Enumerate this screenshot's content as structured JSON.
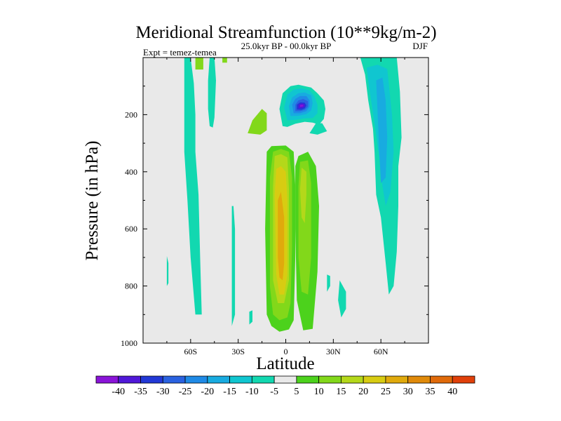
{
  "chart_data": {
    "type": "filled-contour",
    "title": "Meridional Streamfunction (10**9kg/m-2)",
    "subtitle": "25.0kyr BP - 00.0kyr BP",
    "left_label": "Expt = temez-temea",
    "right_label": "DJF",
    "xlabel": "Latitude",
    "ylabel": "Pressure (in hPa)",
    "xlim": [
      -90,
      90
    ],
    "ylim": [
      1000,
      0
    ],
    "xticks": [
      {
        "value": -60,
        "label": "60S"
      },
      {
        "value": -30,
        "label": "30S"
      },
      {
        "value": 0,
        "label": "0"
      },
      {
        "value": 30,
        "label": "30N"
      },
      {
        "value": 60,
        "label": "60N"
      }
    ],
    "yticks": [
      {
        "value": 200,
        "label": "200"
      },
      {
        "value": 400,
        "label": "400"
      },
      {
        "value": 600,
        "label": "600"
      },
      {
        "value": 800,
        "label": "800"
      },
      {
        "value": 1000,
        "label": "1000"
      }
    ],
    "levels": [
      -40,
      -35,
      -30,
      -25,
      -20,
      -15,
      -10,
      -5,
      5,
      10,
      15,
      20,
      25,
      30,
      35,
      40
    ],
    "colors": [
      "#8a14d8",
      "#5018d8",
      "#2238d6",
      "#2a62e0",
      "#1f8ae6",
      "#18abe0",
      "#10c6d0",
      "#12d8b0",
      "#e9e9e9",
      "#4cd21c",
      "#82d81a",
      "#b4d81a",
      "#d8cc12",
      "#e0aa0c",
      "#e08a0a",
      "#e06a0a",
      "#e0400a"
    ],
    "background_color": "#e9e9e9",
    "regions": [
      {
        "class": 10,
        "points": [
          [
            -57,
            0
          ],
          [
            -52,
            0
          ],
          [
            -52,
            42
          ],
          [
            -57,
            42
          ]
        ]
      },
      {
        "class": 10,
        "points": [
          [
            -40,
            0
          ],
          [
            -37,
            0
          ],
          [
            -37,
            18
          ],
          [
            -40,
            18
          ]
        ]
      },
      {
        "class": 10,
        "points": [
          [
            -15,
            180
          ],
          [
            -12,
            195
          ],
          [
            -12,
            255
          ],
          [
            -16,
            270
          ],
          [
            -24,
            265
          ],
          [
            -21,
            220
          ]
        ]
      },
      {
        "class": 7,
        "points": [
          [
            -64,
            0
          ],
          [
            -60,
            0
          ],
          [
            -58,
            90
          ],
          [
            -57,
            200
          ],
          [
            -57,
            330
          ],
          [
            -55,
            480
          ],
          [
            -54,
            700
          ],
          [
            -53,
            900
          ],
          [
            -57,
            900
          ],
          [
            -60,
            700
          ],
          [
            -62,
            500
          ],
          [
            -64,
            330
          ]
        ]
      },
      {
        "class": 7,
        "points": [
          [
            -48,
            0
          ],
          [
            -45,
            0
          ],
          [
            -44,
            80
          ],
          [
            -45,
            210
          ],
          [
            -46,
            245
          ],
          [
            -48,
            240
          ],
          [
            -49,
            180
          ],
          [
            -49,
            80
          ]
        ]
      },
      {
        "class": 7,
        "points": [
          [
            -75,
            695
          ],
          [
            -74,
            720
          ],
          [
            -74,
            790
          ],
          [
            -75,
            800
          ]
        ]
      },
      {
        "class": 7,
        "points": [
          [
            -34,
            520
          ],
          [
            -33,
            520
          ],
          [
            -32,
            600
          ],
          [
            -32,
            900
          ],
          [
            -34,
            940
          ]
        ]
      },
      {
        "class": 7,
        "points": [
          [
            -23,
            890
          ],
          [
            -21,
            885
          ],
          [
            -21,
            925
          ],
          [
            -23,
            935
          ]
        ]
      },
      {
        "class": 7,
        "points": [
          [
            15,
            265
          ],
          [
            19,
            230
          ],
          [
            23,
            230
          ],
          [
            26,
            258
          ],
          [
            20,
            270
          ]
        ]
      },
      {
        "class": 7,
        "points": [
          [
            26,
            760
          ],
          [
            28,
            765
          ],
          [
            28,
            800
          ],
          [
            26,
            820
          ]
        ]
      },
      {
        "class": 7,
        "points": [
          [
            34,
            780
          ],
          [
            38,
            820
          ],
          [
            38,
            880
          ],
          [
            35,
            910
          ],
          [
            33,
            850
          ]
        ]
      },
      {
        "class": 7,
        "points": [
          [
            47,
            0
          ],
          [
            55,
            0
          ],
          [
            63,
            0
          ],
          [
            70,
            0
          ],
          [
            72,
            120
          ],
          [
            73,
            280
          ],
          [
            71,
            380
          ],
          [
            71,
            520
          ],
          [
            70,
            680
          ],
          [
            68,
            800
          ],
          [
            65,
            830
          ],
          [
            63,
            720
          ],
          [
            60,
            560
          ],
          [
            57,
            480
          ],
          [
            56,
            330
          ],
          [
            55,
            250
          ],
          [
            52,
            150
          ],
          [
            50,
            60
          ]
        ]
      },
      {
        "class": 6,
        "points": [
          [
            51,
            35
          ],
          [
            58,
            25
          ],
          [
            64,
            40
          ],
          [
            67,
            200
          ],
          [
            68,
            330
          ],
          [
            66,
            470
          ],
          [
            63,
            520
          ],
          [
            61,
            450
          ],
          [
            59,
            350
          ],
          [
            56,
            230
          ],
          [
            53,
            120
          ]
        ]
      },
      {
        "class": 5,
        "points": [
          [
            57,
            80
          ],
          [
            61,
            70
          ],
          [
            63,
            150
          ],
          [
            64,
            280
          ],
          [
            63,
            420
          ],
          [
            60,
            440
          ],
          [
            59,
            330
          ],
          [
            58,
            200
          ]
        ]
      },
      {
        "class": 7,
        "points": [
          [
            -2,
            240
          ],
          [
            -4,
            180
          ],
          [
            -2,
            125
          ],
          [
            3,
            100
          ],
          [
            8,
            95
          ],
          [
            12,
            100
          ],
          [
            16,
            105
          ],
          [
            20,
            125
          ],
          [
            24,
            150
          ],
          [
            25,
            180
          ],
          [
            24,
            215
          ],
          [
            21,
            235
          ],
          [
            17,
            228
          ],
          [
            12,
            225
          ],
          [
            6,
            232
          ],
          [
            1,
            243
          ]
        ]
      },
      {
        "class": 6,
        "points": [
          [
            1,
            220
          ],
          [
            -1,
            175
          ],
          [
            1,
            130
          ],
          [
            5,
            112
          ],
          [
            10,
            108
          ],
          [
            15,
            115
          ],
          [
            18,
            135
          ],
          [
            20,
            165
          ],
          [
            20,
            195
          ],
          [
            17,
            212
          ],
          [
            12,
            213
          ],
          [
            6,
            218
          ]
        ]
      },
      {
        "class": 5,
        "points": [
          [
            3,
            205
          ],
          [
            2,
            170
          ],
          [
            4,
            140
          ],
          [
            8,
            125
          ],
          [
            12,
            122
          ],
          [
            16,
            132
          ],
          [
            17,
            160
          ],
          [
            16,
            185
          ],
          [
            13,
            198
          ],
          [
            8,
            204
          ]
        ]
      },
      {
        "class": 4,
        "points": [
          [
            5,
            195
          ],
          [
            4,
            165
          ],
          [
            6,
            145
          ],
          [
            9,
            135
          ],
          [
            13,
            135
          ],
          [
            15,
            150
          ],
          [
            15,
            172
          ],
          [
            13,
            188
          ],
          [
            9,
            195
          ]
        ]
      },
      {
        "class": 3,
        "points": [
          [
            6,
            188
          ],
          [
            6,
            165
          ],
          [
            8,
            150
          ],
          [
            11,
            145
          ],
          [
            14,
            153
          ],
          [
            14,
            172
          ],
          [
            12,
            183
          ],
          [
            9,
            188
          ]
        ]
      },
      {
        "class": 2,
        "points": [
          [
            7,
            182
          ],
          [
            7,
            165
          ],
          [
            9,
            157
          ],
          [
            12,
            158
          ],
          [
            13,
            168
          ],
          [
            12,
            178
          ],
          [
            10,
            183
          ]
        ]
      },
      {
        "class": 1,
        "points": [
          [
            8,
            178
          ],
          [
            8,
            165
          ],
          [
            10,
            160
          ],
          [
            12,
            163
          ],
          [
            12,
            173
          ],
          [
            10,
            178
          ]
        ]
      },
      {
        "class": 0,
        "points": [
          [
            9,
            173
          ],
          [
            9,
            166
          ],
          [
            11,
            165
          ],
          [
            11,
            171
          ]
        ]
      },
      {
        "class": 9,
        "points": [
          [
            -9,
            310
          ],
          [
            -12,
            330
          ],
          [
            -13,
            600
          ],
          [
            -12,
            900
          ],
          [
            -9,
            940
          ],
          [
            -4,
            960
          ],
          [
            2,
            952
          ],
          [
            5,
            920
          ],
          [
            6,
            700
          ],
          [
            6,
            450
          ],
          [
            5,
            330
          ],
          [
            0,
            308
          ]
        ]
      },
      {
        "class": 10,
        "points": [
          [
            -8,
            330
          ],
          [
            -10,
            420
          ],
          [
            -10,
            800
          ],
          [
            -8,
            900
          ],
          [
            -4,
            920
          ],
          [
            1,
            910
          ],
          [
            3,
            860
          ],
          [
            4,
            660
          ],
          [
            4,
            420
          ],
          [
            2,
            330
          ],
          [
            -3,
            320
          ]
        ]
      },
      {
        "class": 11,
        "points": [
          [
            -7,
            345
          ],
          [
            -8,
            450
          ],
          [
            -8,
            780
          ],
          [
            -5,
            860
          ],
          [
            -1,
            860
          ],
          [
            2,
            780
          ],
          [
            2,
            460
          ],
          [
            1,
            350
          ],
          [
            -3,
            338
          ]
        ]
      },
      {
        "class": 12,
        "points": [
          [
            -6,
            390
          ],
          [
            -7,
            480
          ],
          [
            -6,
            760
          ],
          [
            -4,
            830
          ],
          [
            -1,
            830
          ],
          [
            1,
            760
          ],
          [
            1,
            500
          ],
          [
            0,
            400
          ],
          [
            -3,
            380
          ]
        ]
      },
      {
        "class": 13,
        "points": [
          [
            -5,
            500
          ],
          [
            -5,
            700
          ],
          [
            -4,
            770
          ],
          [
            -2,
            780
          ],
          [
            -1,
            720
          ],
          [
            -1,
            560
          ],
          [
            -3,
            470
          ]
        ]
      },
      {
        "class": 9,
        "points": [
          [
            8,
            345
          ],
          [
            6,
            380
          ],
          [
            6,
            600
          ],
          [
            7,
            850
          ],
          [
            11,
            955
          ],
          [
            17,
            950
          ],
          [
            20,
            750
          ],
          [
            21,
            520
          ],
          [
            19,
            380
          ],
          [
            14,
            330
          ]
        ]
      },
      {
        "class": 10,
        "points": [
          [
            9,
            365
          ],
          [
            8,
            450
          ],
          [
            8,
            700
          ],
          [
            10,
            820
          ],
          [
            14,
            830
          ],
          [
            16,
            700
          ],
          [
            16,
            440
          ],
          [
            14,
            360
          ]
        ]
      },
      {
        "class": 11,
        "points": [
          [
            10,
            385
          ],
          [
            9,
            460
          ],
          [
            10,
            560
          ],
          [
            12,
            580
          ],
          [
            13,
            480
          ],
          [
            13,
            400
          ]
        ]
      }
    ]
  }
}
